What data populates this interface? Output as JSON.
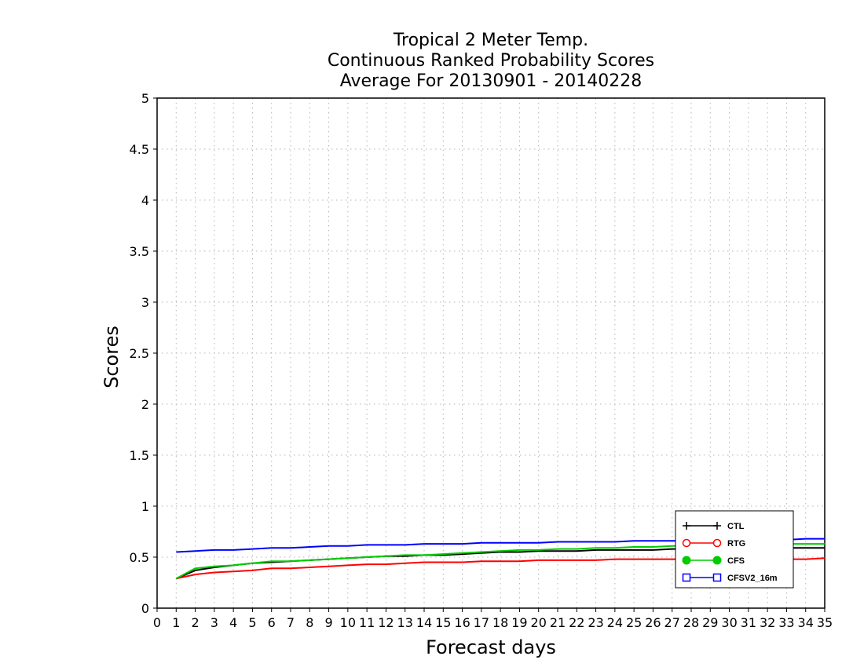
{
  "chart_data": {
    "type": "line",
    "title": [
      "Tropical 2 Meter Temp.",
      "Continuous Ranked Probability Scores",
      "Average For 20130901 - 20140228"
    ],
    "xlabel": "Forecast days",
    "ylabel": "Scores",
    "xlim": [
      0,
      35
    ],
    "ylim": [
      0,
      5
    ],
    "xticks": [
      0,
      1,
      2,
      3,
      4,
      5,
      6,
      7,
      8,
      9,
      10,
      11,
      12,
      13,
      14,
      15,
      16,
      17,
      18,
      19,
      20,
      21,
      22,
      23,
      24,
      25,
      26,
      27,
      28,
      29,
      30,
      31,
      32,
      33,
      34,
      35
    ],
    "yticks": [
      0,
      0.5,
      1,
      1.5,
      2,
      2.5,
      3,
      3.5,
      4,
      4.5,
      5
    ],
    "ytick_labels": [
      "0",
      "0.5",
      "1",
      "1.5",
      "2",
      "2.5",
      "3",
      "3.5",
      "4",
      "4.5",
      "5"
    ],
    "grid": true,
    "legend_position": "bottom-right",
    "x": [
      1,
      2,
      3,
      4,
      5,
      6,
      7,
      8,
      9,
      10,
      11,
      12,
      13,
      14,
      15,
      16,
      17,
      18,
      19,
      20,
      21,
      22,
      23,
      24,
      25,
      26,
      27,
      28,
      29,
      30,
      31,
      32,
      33,
      34,
      35
    ],
    "series": [
      {
        "name": "CTL",
        "color": "#000000",
        "marker": "plus",
        "values": [
          0.29,
          0.37,
          0.4,
          0.42,
          0.44,
          0.45,
          0.46,
          0.47,
          0.48,
          0.49,
          0.5,
          0.51,
          0.51,
          0.52,
          0.52,
          0.53,
          0.54,
          0.55,
          0.55,
          0.56,
          0.56,
          0.56,
          0.57,
          0.57,
          0.57,
          0.57,
          0.58,
          0.58,
          0.58,
          0.58,
          0.58,
          0.58,
          0.59,
          0.59,
          0.59
        ]
      },
      {
        "name": "RTG",
        "color": "#ff0000",
        "marker": "open-circle",
        "values": [
          0.29,
          0.33,
          0.35,
          0.36,
          0.37,
          0.39,
          0.39,
          0.4,
          0.41,
          0.42,
          0.43,
          0.43,
          0.44,
          0.45,
          0.45,
          0.45,
          0.46,
          0.46,
          0.46,
          0.47,
          0.47,
          0.47,
          0.47,
          0.48,
          0.48,
          0.48,
          0.48,
          0.48,
          0.48,
          0.48,
          0.48,
          0.48,
          0.48,
          0.48,
          0.49
        ]
      },
      {
        "name": "CFS",
        "color": "#00cc00",
        "marker": "filled-circle",
        "values": [
          0.29,
          0.39,
          0.41,
          0.42,
          0.44,
          0.46,
          0.46,
          0.47,
          0.48,
          0.49,
          0.5,
          0.51,
          0.52,
          0.52,
          0.53,
          0.54,
          0.55,
          0.56,
          0.57,
          0.57,
          0.58,
          0.58,
          0.59,
          0.59,
          0.6,
          0.6,
          0.61,
          0.61,
          0.62,
          0.62,
          0.62,
          0.62,
          0.63,
          0.63,
          0.63
        ]
      },
      {
        "name": "CFSV2_16m",
        "color": "#0000ff",
        "marker": "open-square",
        "values": [
          0.55,
          0.56,
          0.57,
          0.57,
          0.58,
          0.59,
          0.59,
          0.6,
          0.61,
          0.61,
          0.62,
          0.62,
          0.62,
          0.63,
          0.63,
          0.63,
          0.64,
          0.64,
          0.64,
          0.64,
          0.65,
          0.65,
          0.65,
          0.65,
          0.66,
          0.66,
          0.66,
          0.66,
          0.67,
          0.67,
          0.67,
          0.67,
          0.67,
          0.68,
          0.68
        ]
      }
    ]
  }
}
